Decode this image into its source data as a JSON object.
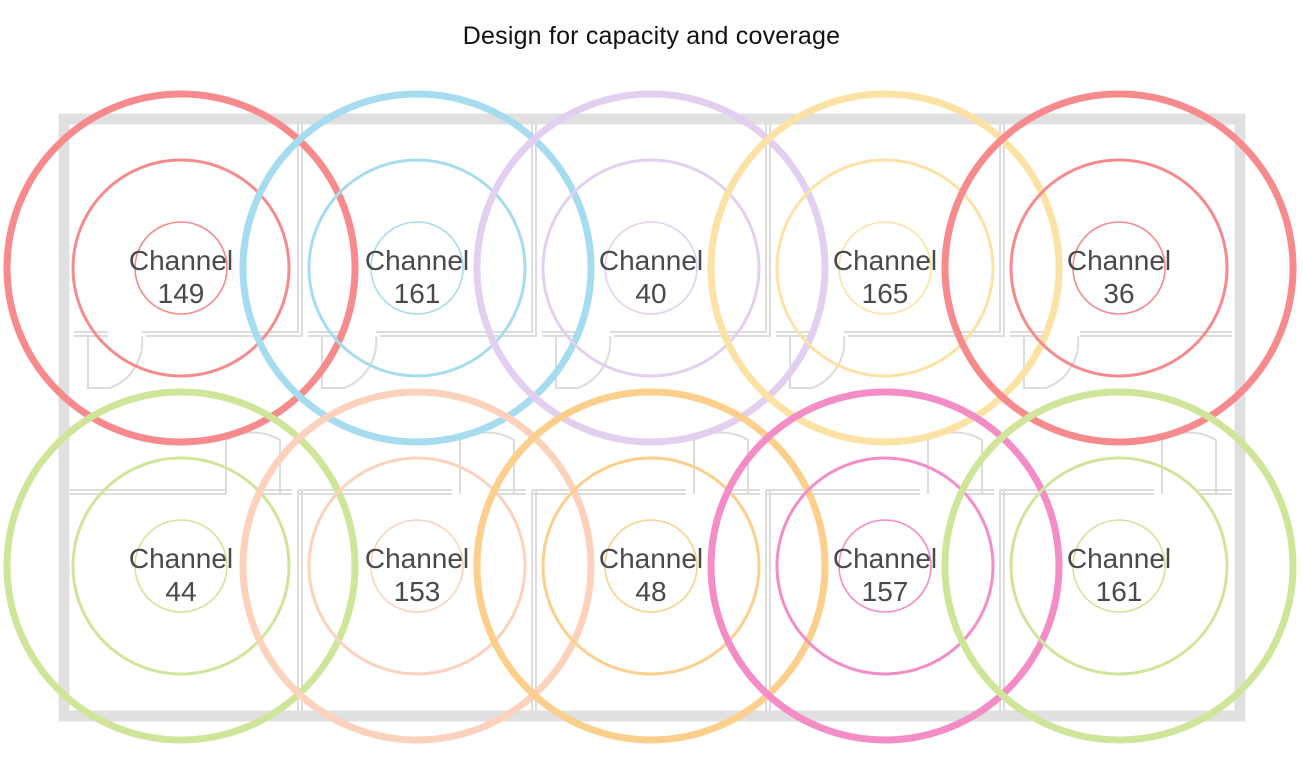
{
  "title": "Design for capacity and coverage",
  "cells": [
    {
      "word": "Channel",
      "number": "149",
      "color": "#f78a8c"
    },
    {
      "word": "Channel",
      "number": "161",
      "color": "#a6dcf0"
    },
    {
      "word": "Channel",
      "number": "40",
      "color": "#e3d0f0"
    },
    {
      "word": "Channel",
      "number": "165",
      "color": "#fde2a6"
    },
    {
      "word": "Channel",
      "number": "36",
      "color": "#f78a8c"
    },
    {
      "word": "Channel",
      "number": "44",
      "color": "#cfe69a"
    },
    {
      "word": "Channel",
      "number": "153",
      "color": "#fcd2bc"
    },
    {
      "word": "Channel",
      "number": "48",
      "color": "#fccf8c"
    },
    {
      "word": "Channel",
      "number": "157",
      "color": "#f48cc6"
    },
    {
      "word": "Channel",
      "number": "161",
      "color": "#cfe69a"
    }
  ]
}
